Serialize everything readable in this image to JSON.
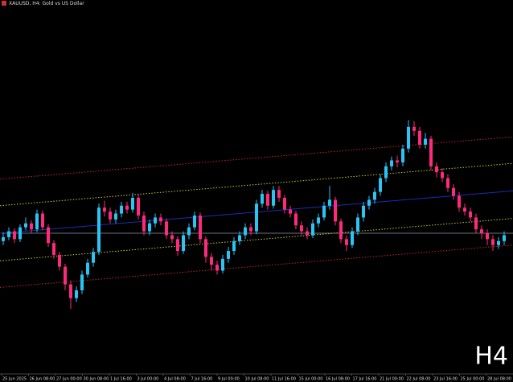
{
  "chart_data": {
    "type": "candlestick",
    "title": "XAUUSD, H4: Gold vs US Dollar",
    "timeframe": "H4",
    "up_color": "#29c5f6",
    "down_color": "#ff2a7d",
    "ylim": [
      3181,
      3561
    ],
    "open": [
      3316,
      3320,
      3326,
      3318,
      3330,
      3334,
      3328,
      3344,
      3330,
      3314,
      3302,
      3290,
      3272,
      3258,
      3266,
      3282,
      3294,
      3305,
      3350,
      3346,
      3338,
      3344,
      3352,
      3348,
      3360,
      3342,
      3326,
      3334,
      3340,
      3336,
      3322,
      3318,
      3306,
      3322,
      3330,
      3342,
      3318,
      3300,
      3292,
      3286,
      3298,
      3306,
      3316,
      3322,
      3330,
      3326,
      3354,
      3364,
      3352,
      3368,
      3360,
      3348,
      3344,
      3332,
      3326,
      3322,
      3334,
      3340,
      3352,
      3358,
      3336,
      3318,
      3312,
      3326,
      3340,
      3352,
      3358,
      3366,
      3380,
      3392,
      3398,
      3396,
      3410,
      3432,
      3428,
      3414,
      3420,
      3392,
      3386,
      3380,
      3370,
      3362,
      3350,
      3346,
      3340,
      3328,
      3324,
      3318,
      3312,
      3316
    ],
    "high": [
      3325,
      3330,
      3329,
      3333,
      3340,
      3337,
      3348,
      3347,
      3333,
      3317,
      3305,
      3293,
      3276,
      3270,
      3286,
      3298,
      3309,
      3354,
      3357,
      3350,
      3348,
      3356,
      3356,
      3365,
      3363,
      3346,
      3338,
      3344,
      3344,
      3339,
      3326,
      3321,
      3326,
      3334,
      3346,
      3345,
      3321,
      3304,
      3296,
      3302,
      3310,
      3320,
      3326,
      3334,
      3334,
      3358,
      3368,
      3367,
      3372,
      3372,
      3363,
      3352,
      3347,
      3336,
      3330,
      3338,
      3344,
      3356,
      3372,
      3361,
      3339,
      3322,
      3330,
      3344,
      3356,
      3362,
      3370,
      3384,
      3396,
      3402,
      3403,
      3414,
      3439,
      3438,
      3432,
      3426,
      3423,
      3396,
      3390,
      3384,
      3374,
      3366,
      3354,
      3350,
      3344,
      3332,
      3328,
      3322,
      3320,
      3326
    ],
    "low": [
      3312,
      3317,
      3314,
      3315,
      3327,
      3324,
      3325,
      3327,
      3310,
      3298,
      3286,
      3266,
      3247,
      3254,
      3262,
      3279,
      3290,
      3302,
      3341,
      3334,
      3334,
      3340,
      3344,
      3345,
      3338,
      3322,
      3322,
      3330,
      3332,
      3318,
      3314,
      3301,
      3303,
      3318,
      3327,
      3314,
      3294,
      3286,
      3282,
      3283,
      3294,
      3302,
      3312,
      3318,
      3322,
      3323,
      3350,
      3348,
      3349,
      3356,
      3344,
      3340,
      3328,
      3322,
      3318,
      3319,
      3330,
      3337,
      3348,
      3332,
      3314,
      3306,
      3309,
      3322,
      3336,
      3348,
      3354,
      3362,
      3376,
      3388,
      3391,
      3392,
      3406,
      3423,
      3410,
      3410,
      3388,
      3381,
      3376,
      3366,
      3358,
      3346,
      3342,
      3336,
      3324,
      3318,
      3312,
      3306,
      3308,
      3312
    ],
    "close": [
      3320,
      3326,
      3318,
      3330,
      3334,
      3328,
      3344,
      3330,
      3314,
      3302,
      3290,
      3272,
      3258,
      3266,
      3282,
      3294,
      3305,
      3350,
      3346,
      3338,
      3344,
      3352,
      3348,
      3360,
      3342,
      3326,
      3334,
      3340,
      3336,
      3322,
      3318,
      3306,
      3322,
      3330,
      3342,
      3318,
      3300,
      3292,
      3286,
      3298,
      3306,
      3316,
      3322,
      3330,
      3326,
      3354,
      3364,
      3352,
      3368,
      3360,
      3348,
      3344,
      3332,
      3326,
      3322,
      3334,
      3340,
      3352,
      3358,
      3336,
      3318,
      3312,
      3326,
      3340,
      3352,
      3358,
      3366,
      3380,
      3392,
      3398,
      3396,
      3410,
      3432,
      3428,
      3414,
      3420,
      3392,
      3386,
      3380,
      3370,
      3362,
      3350,
      3346,
      3340,
      3328,
      3324,
      3318,
      3312,
      3316,
      3322
    ],
    "channel": {
      "center": [
        3324,
        3367
      ],
      "inner_offset": 28,
      "outer_offset": 55,
      "center_color": "#1c2bb8",
      "inner_color": "#c8c832",
      "outer_color": "#c0282a"
    },
    "bid_line": 3324,
    "bid_color": "#8a9aa8",
    "x_labels": [
      "25 Jun 2025",
      "26 Jun 08:00",
      "27 Jun 00:00",
      "30 Jun 08:00",
      "1 Jul 16:00",
      "3 Jul 00:00",
      "4 Jul 08:00",
      "7 Jul 16:00",
      "9 Jul 00:00",
      "10 Jul 08:00",
      "11 Jul 16:00",
      "15 Jul 00:00",
      "16 Jul 08:00",
      "17 Jul 16:00",
      "21 Jul 00:00",
      "22 Jul 08:00",
      "23 Jul 16:00",
      "25 Jul 00:00",
      "28 Jul 08:00"
    ]
  }
}
